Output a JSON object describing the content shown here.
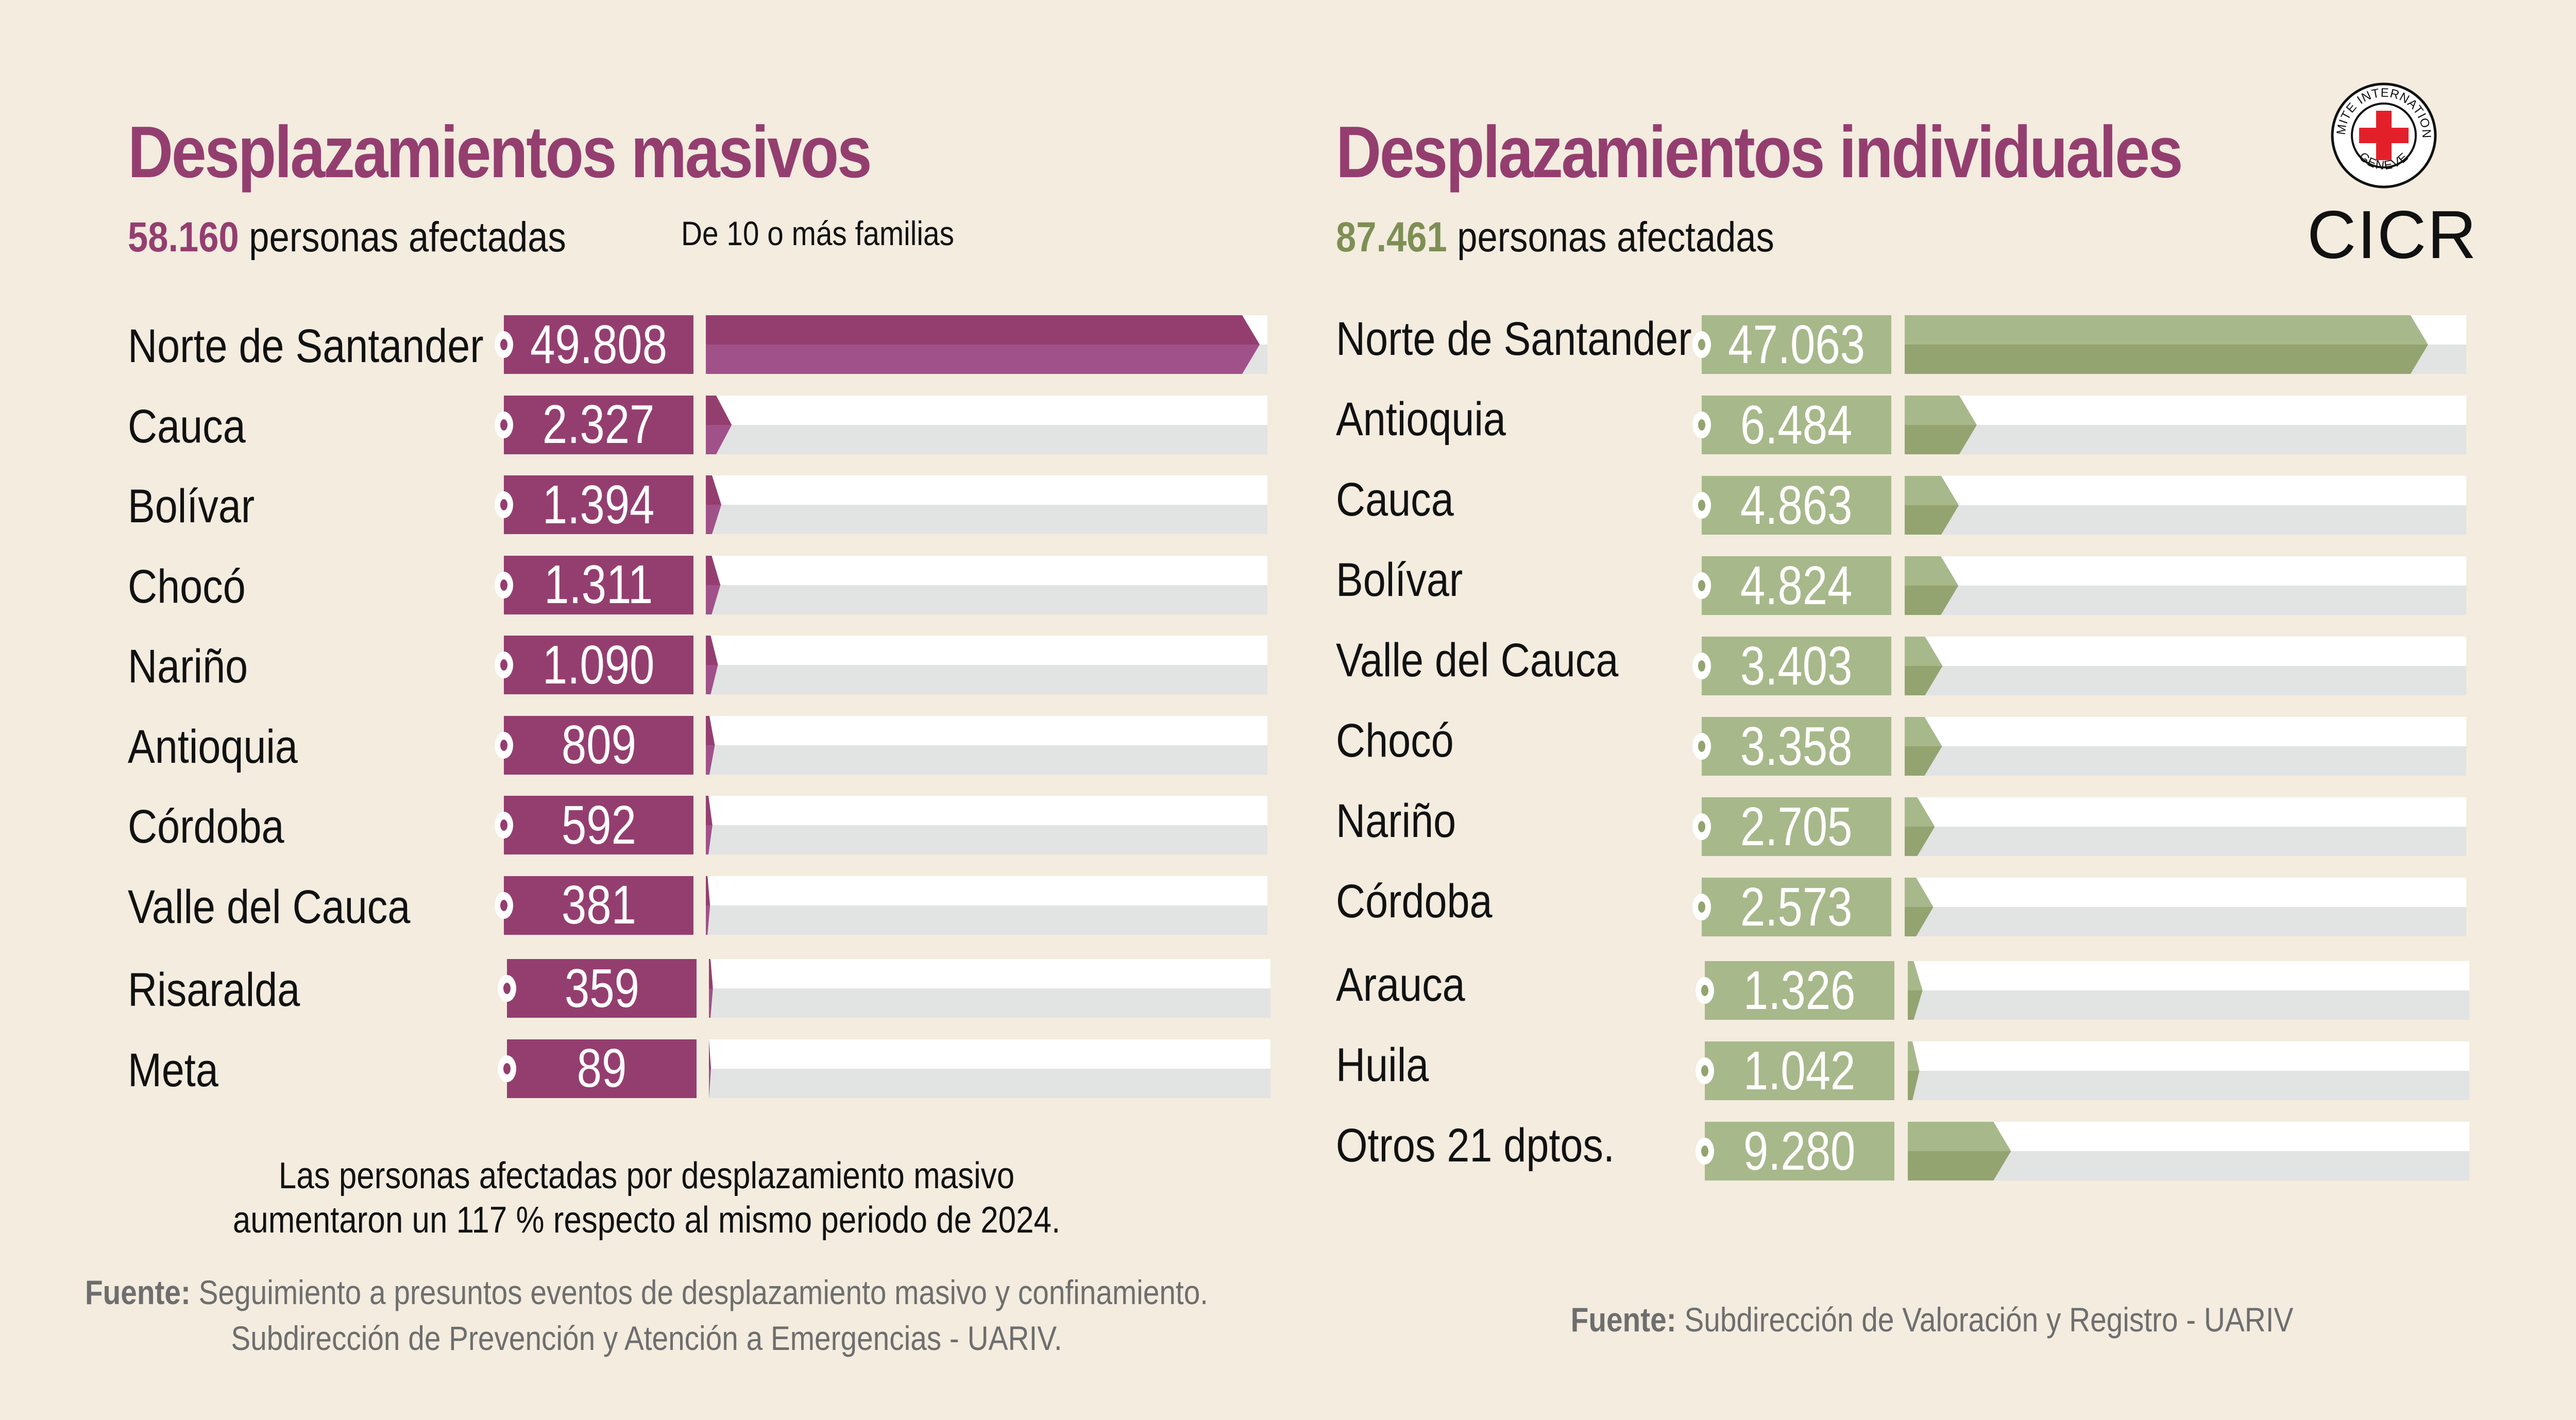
{
  "colors": {
    "background": "#f3ecdf",
    "title": "#943e70",
    "masivo_box": "#943e70",
    "masivo_bar_top": "#943e70",
    "masivo_bar_bottom": "#a05189",
    "individual_box": "#a7b88a",
    "individual_bar_top": "#a7b88a",
    "individual_bar_bottom": "#93a470",
    "individual_total": "#7e8f55",
    "track_top": "#ffffff",
    "track_bottom": "#e2e3e3",
    "logo_red": "#e3202a"
  },
  "logo": {
    "ring_top": "COMITE INTERNATIONAL",
    "ring_bottom": "GENEVE",
    "name": "CICR"
  },
  "masivos": {
    "title": "Desplazamientos masivos",
    "total": "58.160",
    "total_suffix": " personas afectadas",
    "note": "De 10 o más familias",
    "caption_line1": "Las personas afectadas por desplazamiento masivo",
    "caption_line2": "aumentaron un 117 % respecto al mismo periodo de 2024.",
    "source_label": "Fuente:",
    "source_line1": " Seguimiento a presuntos eventos de desplazamiento masivo y confinamiento.",
    "source_line2": "Subdirección de Prevención y Atención a Emergencias - UARIV."
  },
  "individuales": {
    "title": "Desplazamientos individuales",
    "total": "87.461",
    "total_suffix": " personas afectadas",
    "source_label": "Fuente:",
    "source_line1": " Subdirección de Valoración y Registro - UARIV"
  },
  "chart_data": [
    {
      "type": "bar",
      "orientation": "horizontal",
      "title": "Desplazamientos masivos",
      "subtitle": "58.160 personas afectadas",
      "note": "De 10 o más familias",
      "categories": [
        "Norte de Santander",
        "Cauca",
        "Bolívar",
        "Chocó",
        "Nariño",
        "Antioquia",
        "Córdoba",
        "Valle del Cauca",
        "Risaralda",
        "Meta"
      ],
      "values": [
        49808,
        2327,
        1394,
        1311,
        1090,
        809,
        592,
        381,
        359,
        89
      ],
      "labels": [
        "49.808",
        "2.327",
        "1.394",
        "1.311",
        "1.090",
        "809",
        "592",
        "381",
        "359",
        "89"
      ],
      "xlim": [
        0,
        50500
      ],
      "xlabel": "",
      "ylabel": "",
      "grid": false
    },
    {
      "type": "bar",
      "orientation": "horizontal",
      "title": "Desplazamientos individuales",
      "subtitle": "87.461 personas afectadas",
      "categories": [
        "Norte de Santander",
        "Antioquia",
        "Cauca",
        "Bolívar",
        "Valle del Cauca",
        "Chocó",
        "Nariño",
        "Córdoba",
        "Arauca",
        "Huila",
        "Otros 21 dptos."
      ],
      "values": [
        47063,
        6484,
        4863,
        4824,
        3403,
        3358,
        2705,
        2573,
        1326,
        1042,
        9280
      ],
      "labels": [
        "47.063",
        "6.484",
        "4.863",
        "4.824",
        "3.403",
        "3.358",
        "2.705",
        "2.573",
        "1.326",
        "1.042",
        "9.280"
      ],
      "xlim": [
        0,
        50500
      ],
      "xlabel": "",
      "ylabel": "",
      "grid": false
    }
  ]
}
